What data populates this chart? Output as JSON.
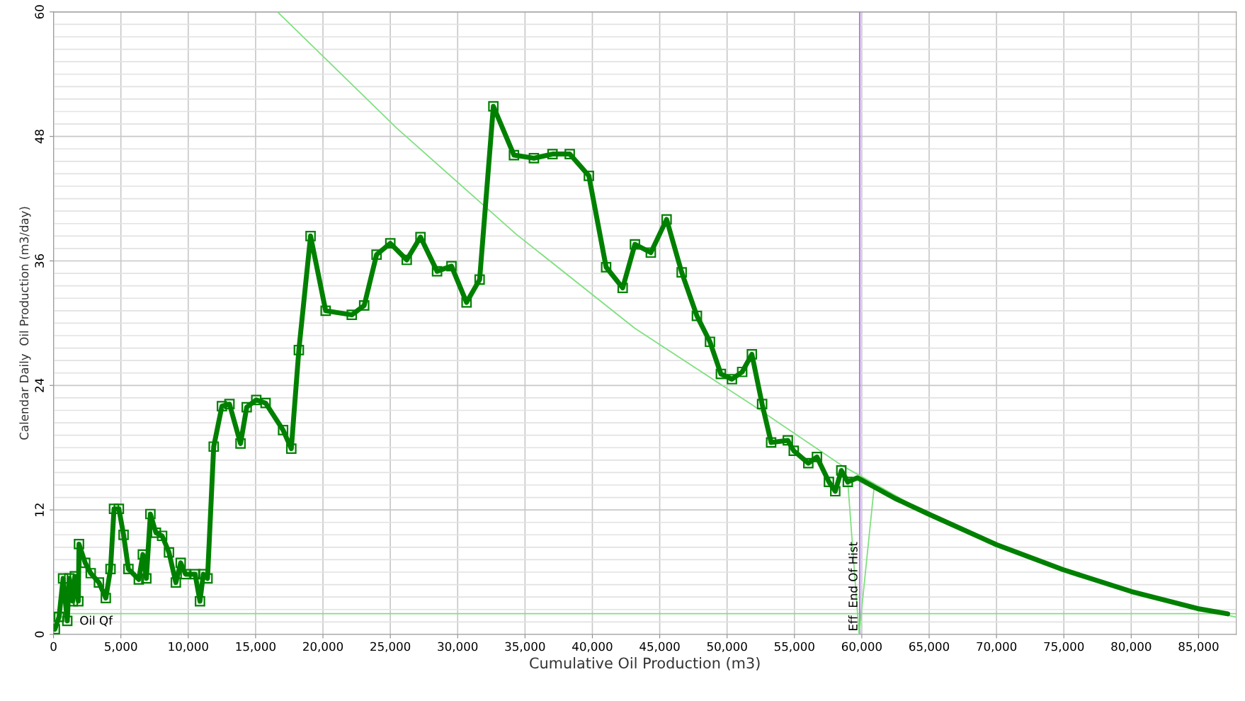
{
  "chart_data": {
    "type": "line",
    "xlabel": "Cumulative Oil Production (m3)",
    "ylabel": "Calendar Daily  Oil Production (m3/day)",
    "xlim": [
      0,
      87800
    ],
    "ylim": [
      0,
      60
    ],
    "xticks": [
      0,
      {
        "value": 5000,
        "label": "5,000"
      },
      {
        "value": 10000,
        "label": "10,000"
      },
      {
        "value": 15000,
        "label": "15,000"
      },
      {
        "value": 20000,
        "label": "20,000"
      },
      {
        "value": 25000,
        "label": "25,000"
      },
      {
        "value": 30000,
        "label": "30,000"
      },
      {
        "value": 35000,
        "label": "35,000"
      },
      {
        "value": 40000,
        "label": "40,000"
      },
      {
        "value": 45000,
        "label": "45,000"
      },
      {
        "value": 50000,
        "label": "50,000"
      },
      {
        "value": 55000,
        "label": "55,000"
      },
      {
        "value": 60000,
        "label": "60,000"
      },
      {
        "value": 65000,
        "label": "65,000"
      },
      {
        "value": 70000,
        "label": "70,000"
      },
      {
        "value": 75000,
        "label": "75,000"
      },
      {
        "value": 80000,
        "label": "80,000"
      },
      {
        "value": 85000,
        "label": "85,000"
      }
    ],
    "yticks": [
      0,
      {
        "value": 1.2,
        "label": null
      },
      {
        "value": 2.4,
        "label": null
      },
      {
        "value": 3.6,
        "label": null
      },
      {
        "value": 4.8,
        "label": null
      },
      {
        "value": 6,
        "label": null
      },
      {
        "value": 7.2,
        "label": null
      },
      {
        "value": 8.4,
        "label": null
      },
      {
        "value": 9.6,
        "label": null
      },
      {
        "value": 10.8,
        "label": null
      },
      12,
      {
        "value": 13.2,
        "label": null
      },
      {
        "value": 14.4,
        "label": null
      },
      {
        "value": 15.6,
        "label": null
      },
      {
        "value": 16.8,
        "label": null
      },
      {
        "value": 18,
        "label": null
      },
      {
        "value": 19.2,
        "label": null
      },
      {
        "value": 20.4,
        "label": null
      },
      {
        "value": 21.6,
        "label": null
      },
      {
        "value": 22.8,
        "label": null
      },
      24,
      {
        "value": 25.2,
        "label": null
      },
      {
        "value": 26.4,
        "label": null
      },
      {
        "value": 27.6,
        "label": null
      },
      {
        "value": 28.8,
        "label": null
      },
      {
        "value": 30,
        "label": null
      },
      {
        "value": 31.2,
        "label": null
      },
      {
        "value": 32.4,
        "label": null
      },
      {
        "value": 33.6,
        "label": null
      },
      {
        "value": 34.8,
        "label": null
      },
      36,
      {
        "value": 37.2,
        "label": null
      },
      {
        "value": 38.4,
        "label": null
      },
      {
        "value": 39.6,
        "label": null
      },
      {
        "value": 40.8,
        "label": null
      },
      {
        "value": 42,
        "label": null
      },
      {
        "value": 43.2,
        "label": null
      },
      {
        "value": 44.4,
        "label": null
      },
      {
        "value": 45.6,
        "label": null
      },
      {
        "value": 46.8,
        "label": null
      },
      48,
      {
        "value": 49.2,
        "label": null
      },
      {
        "value": 50.4,
        "label": null
      },
      {
        "value": 51.6,
        "label": null
      },
      {
        "value": 52.8,
        "label": null
      },
      {
        "value": 54,
        "label": null
      },
      {
        "value": 55.2,
        "label": null
      },
      {
        "value": 56.4,
        "label": null
      },
      {
        "value": 57.6,
        "label": null
      },
      {
        "value": 58.8,
        "label": null
      },
      60
    ],
    "grid": true,
    "series": [
      {
        "color": "#80e080",
        "line_style": "solid",
        "marker": "none",
        "x": [
          16630,
          25470,
          34320,
          43160,
          52000,
          58490,
          64960,
          70000,
          74940,
          80000,
          84930,
          87800
        ],
        "values": [
          60,
          48.8,
          38.6,
          29.5,
          22.0,
          16.3,
          11.6,
          8.65,
          6.24,
          4.14,
          2.49,
          1.66
        ]
      },
      {
        "color": "#80e080",
        "line_style": "solid",
        "marker": "none",
        "x": [
          58960,
          59800,
          60900
        ],
        "values": [
          14.7,
          0,
          14.0
        ]
      },
      {
        "color": "#008000",
        "line_style": "solid",
        "marker": "square",
        "x": [
          100,
          410,
          710,
          1020,
          1170,
          1430,
          1580,
          1840,
          1890,
          2350,
          2760,
          3370,
          3880,
          4230,
          4490,
          4850,
          5200,
          5560,
          6330,
          6630,
          6890,
          7190,
          7600,
          8060,
          8570,
          9080,
          9440,
          9800,
          10510,
          10870,
          11120,
          11430,
          11890,
          12500,
          13060,
          13880,
          14340,
          15050,
          15740,
          17040,
          17650,
          18210,
          19080,
          20200,
          22140,
          23060,
          23980,
          25000,
          26220,
          27240,
          28470,
          29540,
          30660,
          31630,
          32650,
          34180,
          35660,
          37040,
          38320,
          39740,
          41020,
          42250,
          43160,
          44340,
          45510,
          46630,
          47760,
          48730,
          49540,
          50360,
          51120,
          51840,
          52600,
          53270,
          54510,
          54950,
          56030,
          56670,
          57560,
          58030,
          58480,
          58960
        ],
        "values": [
          0.5,
          1.7,
          5.4,
          1.3,
          5.4,
          3.2,
          5.6,
          3.2,
          8.7,
          6.9,
          5.9,
          5.0,
          3.5,
          6.3,
          12.1,
          12.1,
          9.6,
          6.3,
          5.3,
          7.7,
          5.4,
          11.6,
          9.8,
          9.5,
          7.9,
          5.0,
          6.9,
          5.8,
          5.8,
          3.2,
          5.8,
          5.4,
          18.1,
          22.0,
          22.2,
          18.4,
          21.9,
          22.6,
          22.3,
          19.7,
          17.9,
          27.4,
          38.4,
          31.2,
          30.8,
          31.7,
          36.6,
          37.7,
          36.1,
          38.3,
          35.0,
          35.5,
          32.0,
          34.2,
          50.9,
          46.2,
          45.9,
          46.3,
          46.3,
          44.2,
          35.4,
          33.4,
          37.6,
          36.8,
          40.0,
          34.9,
          30.7,
          28.2,
          25.1,
          24.6,
          25.3,
          27.0,
          22.2,
          18.5,
          18.7,
          17.7,
          16.5,
          17.1,
          14.7,
          13.8,
          15.8,
          14.7
        ]
      },
      {
        "color": "#008000",
        "line_style": "solid",
        "marker": "none",
        "x": [
          58960,
          59680,
          62480,
          64960,
          70000,
          74940,
          80000,
          84930,
          87160
        ],
        "values": [
          14.7,
          15.1,
          13.1,
          11.6,
          8.65,
          6.24,
          4.14,
          2.49,
          1.98
        ]
      }
    ],
    "ref_lines": [
      {
        "axis": "y",
        "value": 2.0,
        "label": "Oil Qf",
        "color": "#80e080",
        "line_style": "solid"
      },
      {
        "axis": "x",
        "value": 59850,
        "label": "Eff  End Of Hist",
        "color": "#b080e0",
        "line_style": "solid"
      }
    ]
  }
}
